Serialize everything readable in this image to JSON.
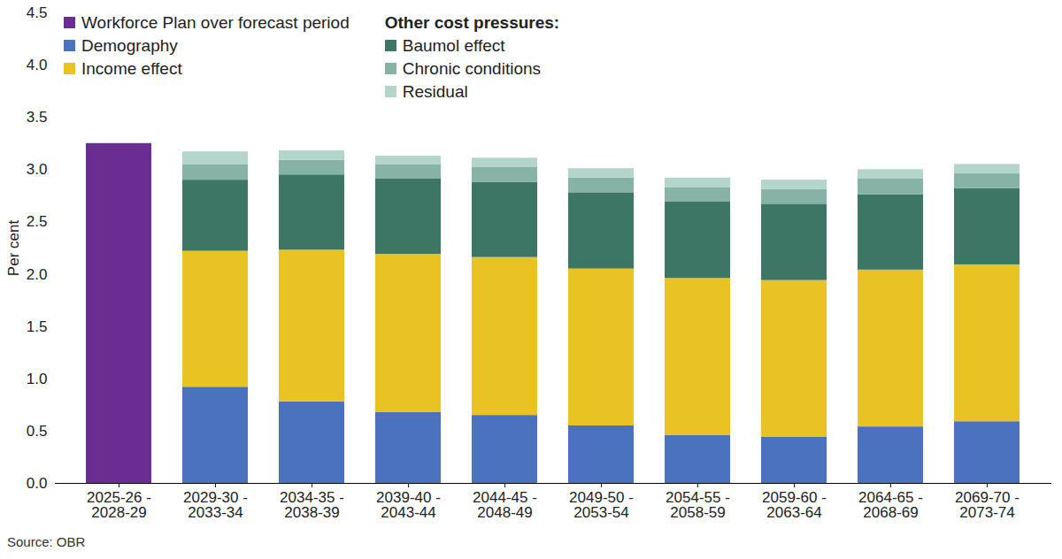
{
  "chart_data": {
    "type": "bar",
    "stacked": true,
    "y_label": "Per cent",
    "caption": "Source: OBR",
    "annotations": [
      {
        "text": "Other cost pressures:"
      }
    ],
    "categories": [
      "2025-26 - 2028-29",
      "2029-30 - 2033-34",
      "2034-35 - 2038-39",
      "2039-40 - 2043-44",
      "2044-45 - 2048-49",
      "2049-50 - 2053-54",
      "2054-55 - 2058-59",
      "2059-60 - 2063-64",
      "2064-65 - 2068-69",
      "2069-70 - 2073-74"
    ],
    "series": [
      {
        "name": "Workforce Plan over forecast period",
        "color": "#6a2d91",
        "values": [
          3.25,
          null,
          null,
          null,
          null,
          null,
          null,
          null,
          null,
          null
        ]
      },
      {
        "name": "Demography",
        "color": "#4a72be",
        "values": [
          null,
          0.92,
          0.78,
          0.68,
          0.65,
          0.55,
          0.46,
          0.44,
          0.54,
          0.59
        ]
      },
      {
        "name": "Income effect",
        "color": "#e9c224",
        "values": [
          null,
          1.3,
          1.45,
          1.51,
          1.51,
          1.5,
          1.5,
          1.5,
          1.5,
          1.5
        ]
      },
      {
        "name": "Baumol effect",
        "color": "#3e7666",
        "values": [
          null,
          0.68,
          0.72,
          0.72,
          0.72,
          0.73,
          0.73,
          0.73,
          0.72,
          0.73
        ]
      },
      {
        "name": "Chronic conditions",
        "color": "#86b3a5",
        "values": [
          null,
          0.15,
          0.14,
          0.14,
          0.14,
          0.14,
          0.14,
          0.14,
          0.15,
          0.14
        ]
      },
      {
        "name": "Residual",
        "color": "#b3d5cc",
        "values": [
          null,
          0.12,
          0.09,
          0.08,
          0.09,
          0.09,
          0.09,
          0.09,
          0.09,
          0.09
        ]
      }
    ],
    "ylim": [
      0,
      4.5
    ],
    "yticks": [
      {
        "value": 0,
        "label": "0.0"
      },
      0.5,
      {
        "value": 1,
        "label": "1.0"
      },
      1.5,
      {
        "value": 2,
        "label": "2.0"
      },
      2.5,
      {
        "value": 3,
        "label": "3.0"
      },
      3.5,
      {
        "value": 4,
        "label": "4.0"
      },
      4.5
    ],
    "grid": false,
    "legend": "top-left"
  }
}
